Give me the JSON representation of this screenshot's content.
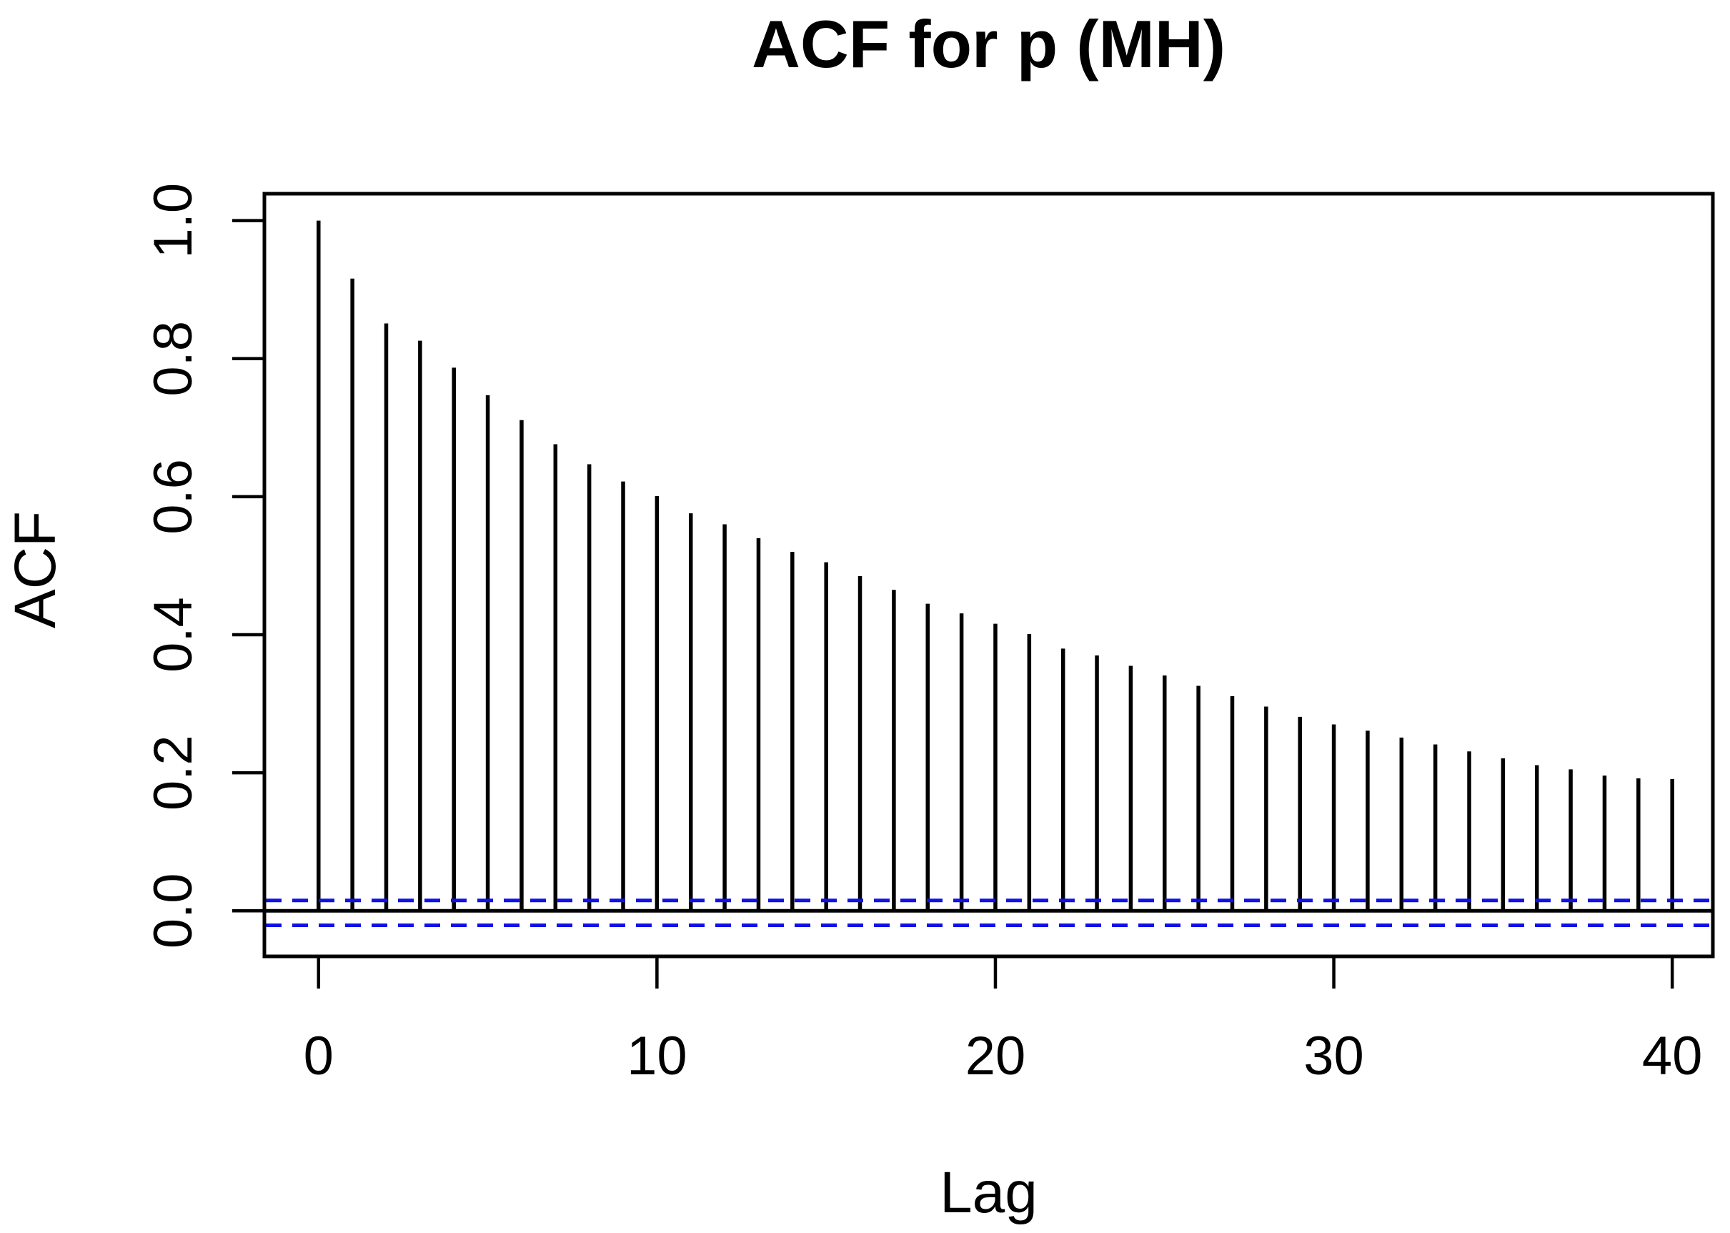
{
  "window": {
    "background": "#ffffff"
  },
  "colors": {
    "bars": "#000000",
    "axis": "#000000",
    "zero_line": "#000000",
    "confidence_line": "#1010e8"
  },
  "chart_data": {
    "type": "bar",
    "subtype": "acf-vertical-sticks",
    "title": "ACF for p (MH)",
    "xlabel": "Lag",
    "ylabel": "ACF",
    "x": [
      0,
      1,
      2,
      3,
      4,
      5,
      6,
      7,
      8,
      9,
      10,
      11,
      12,
      13,
      14,
      15,
      16,
      17,
      18,
      19,
      20,
      21,
      22,
      23,
      24,
      25,
      26,
      27,
      28,
      29,
      30,
      31,
      32,
      33,
      34,
      35,
      36,
      37,
      38,
      39,
      40
    ],
    "values": [
      1.0,
      0.916,
      0.851,
      0.826,
      0.787,
      0.747,
      0.711,
      0.676,
      0.647,
      0.622,
      0.601,
      0.576,
      0.56,
      0.54,
      0.52,
      0.505,
      0.485,
      0.465,
      0.445,
      0.431,
      0.416,
      0.401,
      0.38,
      0.37,
      0.355,
      0.341,
      0.326,
      0.311,
      0.296,
      0.281,
      0.27,
      0.261,
      0.251,
      0.241,
      0.231,
      0.221,
      0.211,
      0.205,
      0.196,
      0.192,
      0.191
    ],
    "zero_line": 0.0,
    "ci_upper": 0.015,
    "ci_lower": -0.021,
    "xticks": {
      "values": [
        0,
        10,
        20,
        30,
        40
      ],
      "labels": [
        "0",
        "10",
        "20",
        "30",
        "40"
      ]
    },
    "yticks": {
      "values": [
        0.0,
        0.2,
        0.4,
        0.6,
        0.8,
        1.0
      ],
      "labels": [
        "0.0",
        "0.2",
        "0.4",
        "0.6",
        "0.8",
        "1.0"
      ]
    },
    "xlim": [
      -1.6,
      41.2
    ],
    "ylim": [
      -0.066,
      1.039
    ],
    "grid": "off",
    "legend": "none"
  }
}
